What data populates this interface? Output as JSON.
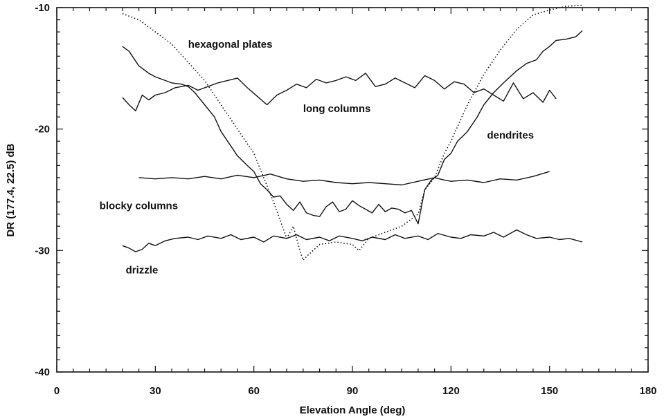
{
  "chart_data": {
    "type": "line",
    "title": "",
    "xlabel": "Elevation Angle (deg)",
    "ylabel": "DR (177.4, 22.5) dB",
    "xlim": [
      0,
      180
    ],
    "ylim": [
      -40,
      -10
    ],
    "xticks": [
      0,
      30,
      60,
      90,
      120,
      150,
      180
    ],
    "xtick_labels": [
      "0",
      "30",
      "60",
      "90",
      "120",
      "150",
      "180"
    ],
    "yticks": [
      -40,
      -30,
      -20,
      -10
    ],
    "ytick_labels": [
      "-40",
      "-30",
      "-20",
      "-10"
    ],
    "grid": false,
    "legend": "none",
    "annotations": [
      {
        "text": "hexagonal plates",
        "x": 40,
        "y": -13.3
      },
      {
        "text": "long columns",
        "x": 75,
        "y": -18.6
      },
      {
        "text": "dendrites",
        "x": 131,
        "y": -20.8
      },
      {
        "text": "blocky columns",
        "x": 13,
        "y": -26.6
      },
      {
        "text": "drizzle",
        "x": 21,
        "y": -31.9
      }
    ],
    "series": [
      {
        "style": "dotted",
        "x": [
          20,
          25,
          30,
          35,
          40,
          45,
          50,
          55,
          60,
          63,
          66,
          68,
          70,
          72,
          74,
          75,
          76,
          78,
          80,
          85,
          90,
          92,
          95,
          100,
          105,
          110,
          112,
          115,
          118,
          120,
          125,
          130,
          135,
          140,
          145,
          150,
          155,
          160
        ],
        "y": [
          -10.5,
          -11.0,
          -12.0,
          -13.0,
          -14.5,
          -16.0,
          -18.0,
          -20.0,
          -22.0,
          -24.0,
          -26.0,
          -27.5,
          -29.0,
          -28.0,
          -30.0,
          -30.8,
          -30.5,
          -30.0,
          -29.5,
          -29.3,
          -29.5,
          -30.0,
          -29.0,
          -28.5,
          -28.0,
          -27.0,
          -25.0,
          -24.0,
          -22.0,
          -21.0,
          -18.0,
          -15.5,
          -13.5,
          -11.8,
          -10.6,
          -10.2,
          -9.9,
          -9.8
        ]
      },
      {
        "style": "solid",
        "x": [
          20,
          22,
          25,
          28,
          30,
          33,
          35,
          38,
          40,
          42,
          45,
          48,
          50,
          52,
          55,
          58,
          60,
          62,
          64,
          66,
          68,
          70,
          72,
          74,
          76,
          78,
          80,
          82,
          84,
          86,
          88,
          90,
          92,
          94,
          96,
          98,
          100,
          102,
          104,
          106,
          108,
          110,
          112,
          114,
          116,
          118,
          120,
          122,
          125,
          128,
          130,
          133,
          136,
          140,
          143,
          146,
          148,
          150,
          152,
          155,
          158,
          160
        ],
        "y": [
          -13.2,
          -13.6,
          -14.8,
          -15.4,
          -15.7,
          -16.0,
          -16.2,
          -16.3,
          -16.5,
          -17.0,
          -18.0,
          -19.0,
          -20.2,
          -21.0,
          -22.2,
          -23.0,
          -23.5,
          -24.5,
          -25.0,
          -25.6,
          -25.5,
          -26.2,
          -26.7,
          -26.0,
          -26.9,
          -27.1,
          -27.2,
          -26.4,
          -26.0,
          -26.8,
          -26.6,
          -25.9,
          -26.3,
          -26.6,
          -26.9,
          -26.2,
          -26.8,
          -26.5,
          -26.6,
          -26.9,
          -26.7,
          -27.8,
          -25.0,
          -24.2,
          -23.8,
          -22.5,
          -22.0,
          -21.0,
          -20.2,
          -19.0,
          -18.0,
          -17.0,
          -16.2,
          -15.2,
          -14.6,
          -14.3,
          -13.6,
          -13.2,
          -12.7,
          -12.6,
          -12.4,
          -11.9
        ]
      },
      {
        "style": "solid",
        "x": [
          20,
          22,
          24,
          26,
          28,
          30,
          33,
          36,
          40,
          43,
          46,
          49,
          52,
          55,
          58,
          61,
          64,
          67,
          70,
          73,
          76,
          79,
          82,
          85,
          88,
          91,
          94,
          97,
          100,
          103,
          106,
          109,
          112,
          115,
          118,
          121,
          124,
          127,
          130,
          133,
          136,
          139,
          142,
          145,
          148,
          150,
          152
        ],
        "y": [
          -17.4,
          -18.0,
          -18.5,
          -17.2,
          -17.6,
          -17.2,
          -17.0,
          -16.6,
          -16.4,
          -16.8,
          -16.5,
          -16.2,
          -16.0,
          -15.8,
          -16.6,
          -17.3,
          -18.0,
          -17.2,
          -16.8,
          -16.3,
          -16.6,
          -15.9,
          -16.2,
          -16.0,
          -15.7,
          -16.0,
          -15.4,
          -16.5,
          -16.3,
          -15.8,
          -16.2,
          -16.6,
          -15.6,
          -16.0,
          -16.7,
          -16.1,
          -16.3,
          -17.0,
          -16.7,
          -17.2,
          -17.7,
          -16.2,
          -17.5,
          -17.0,
          -17.8,
          -16.8,
          -17.5
        ]
      },
      {
        "style": "solid",
        "x": [
          25,
          30,
          35,
          40,
          45,
          50,
          55,
          60,
          65,
          70,
          75,
          80,
          85,
          90,
          95,
          100,
          105,
          110,
          115,
          118,
          120,
          125,
          130,
          135,
          140,
          145,
          150
        ],
        "y": [
          -24.0,
          -24.1,
          -24.0,
          -24.1,
          -23.9,
          -24.1,
          -23.8,
          -24.0,
          -23.7,
          -24.1,
          -24.3,
          -24.2,
          -24.4,
          -24.5,
          -24.4,
          -24.5,
          -24.6,
          -24.3,
          -24.0,
          -24.2,
          -24.3,
          -24.2,
          -24.4,
          -24.1,
          -24.2,
          -23.9,
          -23.5
        ]
      },
      {
        "style": "solid",
        "x": [
          20,
          22,
          24,
          26,
          28,
          30,
          33,
          36,
          40,
          43,
          46,
          50,
          53,
          56,
          60,
          63,
          66,
          70,
          73,
          76,
          80,
          83,
          86,
          90,
          93,
          96,
          100,
          103,
          106,
          110,
          113,
          116,
          120,
          123,
          126,
          130,
          133,
          136,
          140,
          143,
          146,
          150,
          153,
          156,
          160
        ],
        "y": [
          -29.6,
          -29.8,
          -30.1,
          -29.9,
          -29.4,
          -29.6,
          -29.2,
          -29.0,
          -28.9,
          -29.1,
          -28.8,
          -29.0,
          -28.7,
          -29.1,
          -28.9,
          -29.3,
          -28.8,
          -29.0,
          -28.7,
          -29.1,
          -28.9,
          -29.2,
          -28.8,
          -29.0,
          -29.2,
          -28.9,
          -29.1,
          -28.7,
          -29.0,
          -28.8,
          -29.1,
          -28.6,
          -28.9,
          -29.0,
          -28.7,
          -28.8,
          -28.5,
          -28.9,
          -28.3,
          -28.7,
          -29.0,
          -28.9,
          -29.1,
          -29.0,
          -29.3
        ]
      }
    ]
  }
}
